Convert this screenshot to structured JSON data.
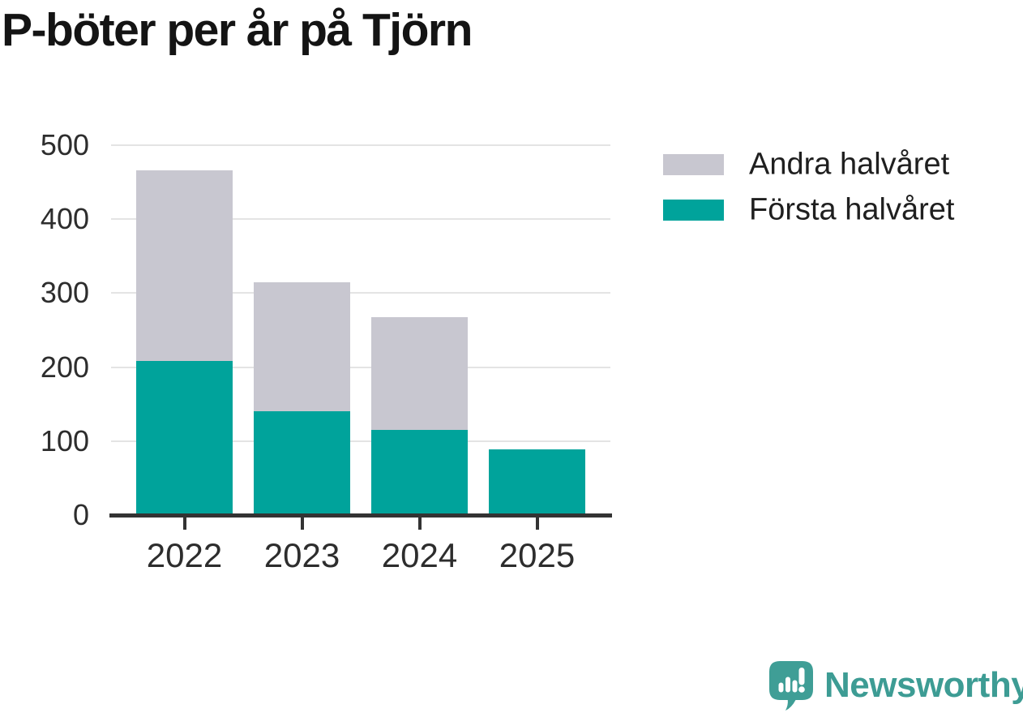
{
  "title": "P-böter per år på Tjörn",
  "legend": {
    "items": [
      {
        "label": "Andra halvåret",
        "color": "#c8c7d0"
      },
      {
        "label": "Första halvåret",
        "color": "#00a39b"
      }
    ]
  },
  "brand": {
    "name": "Newsworthy",
    "color": "#3d9c94",
    "icon": "speech-bubble-bar-chart-exclamation",
    "icon_color": "#3f9e96"
  },
  "colors": {
    "background": "#ffffff",
    "grid": "#e4e4e4",
    "axis": "#333333",
    "tick_label": "#2d2d2d",
    "title": "#141414",
    "first_half": "#00a39b",
    "second_half": "#c8c7d0"
  },
  "chart_data": {
    "type": "bar",
    "stacked": true,
    "title": "P-böter per år på Tjörn",
    "categories": [
      "2022",
      "2023",
      "2024",
      "2025"
    ],
    "series": [
      {
        "name": "Första halvåret",
        "color": "#00a39b",
        "values": [
          208,
          140,
          115,
          89
        ]
      },
      {
        "name": "Andra halvåret",
        "color": "#c8c7d0",
        "values": [
          258,
          174,
          152,
          0
        ]
      }
    ],
    "xlabel": "",
    "ylabel": "",
    "ylim": [
      0,
      500
    ],
    "yticks": [
      0,
      100,
      200,
      300,
      400,
      500
    ],
    "grid": true,
    "legend_position": "top-right"
  }
}
